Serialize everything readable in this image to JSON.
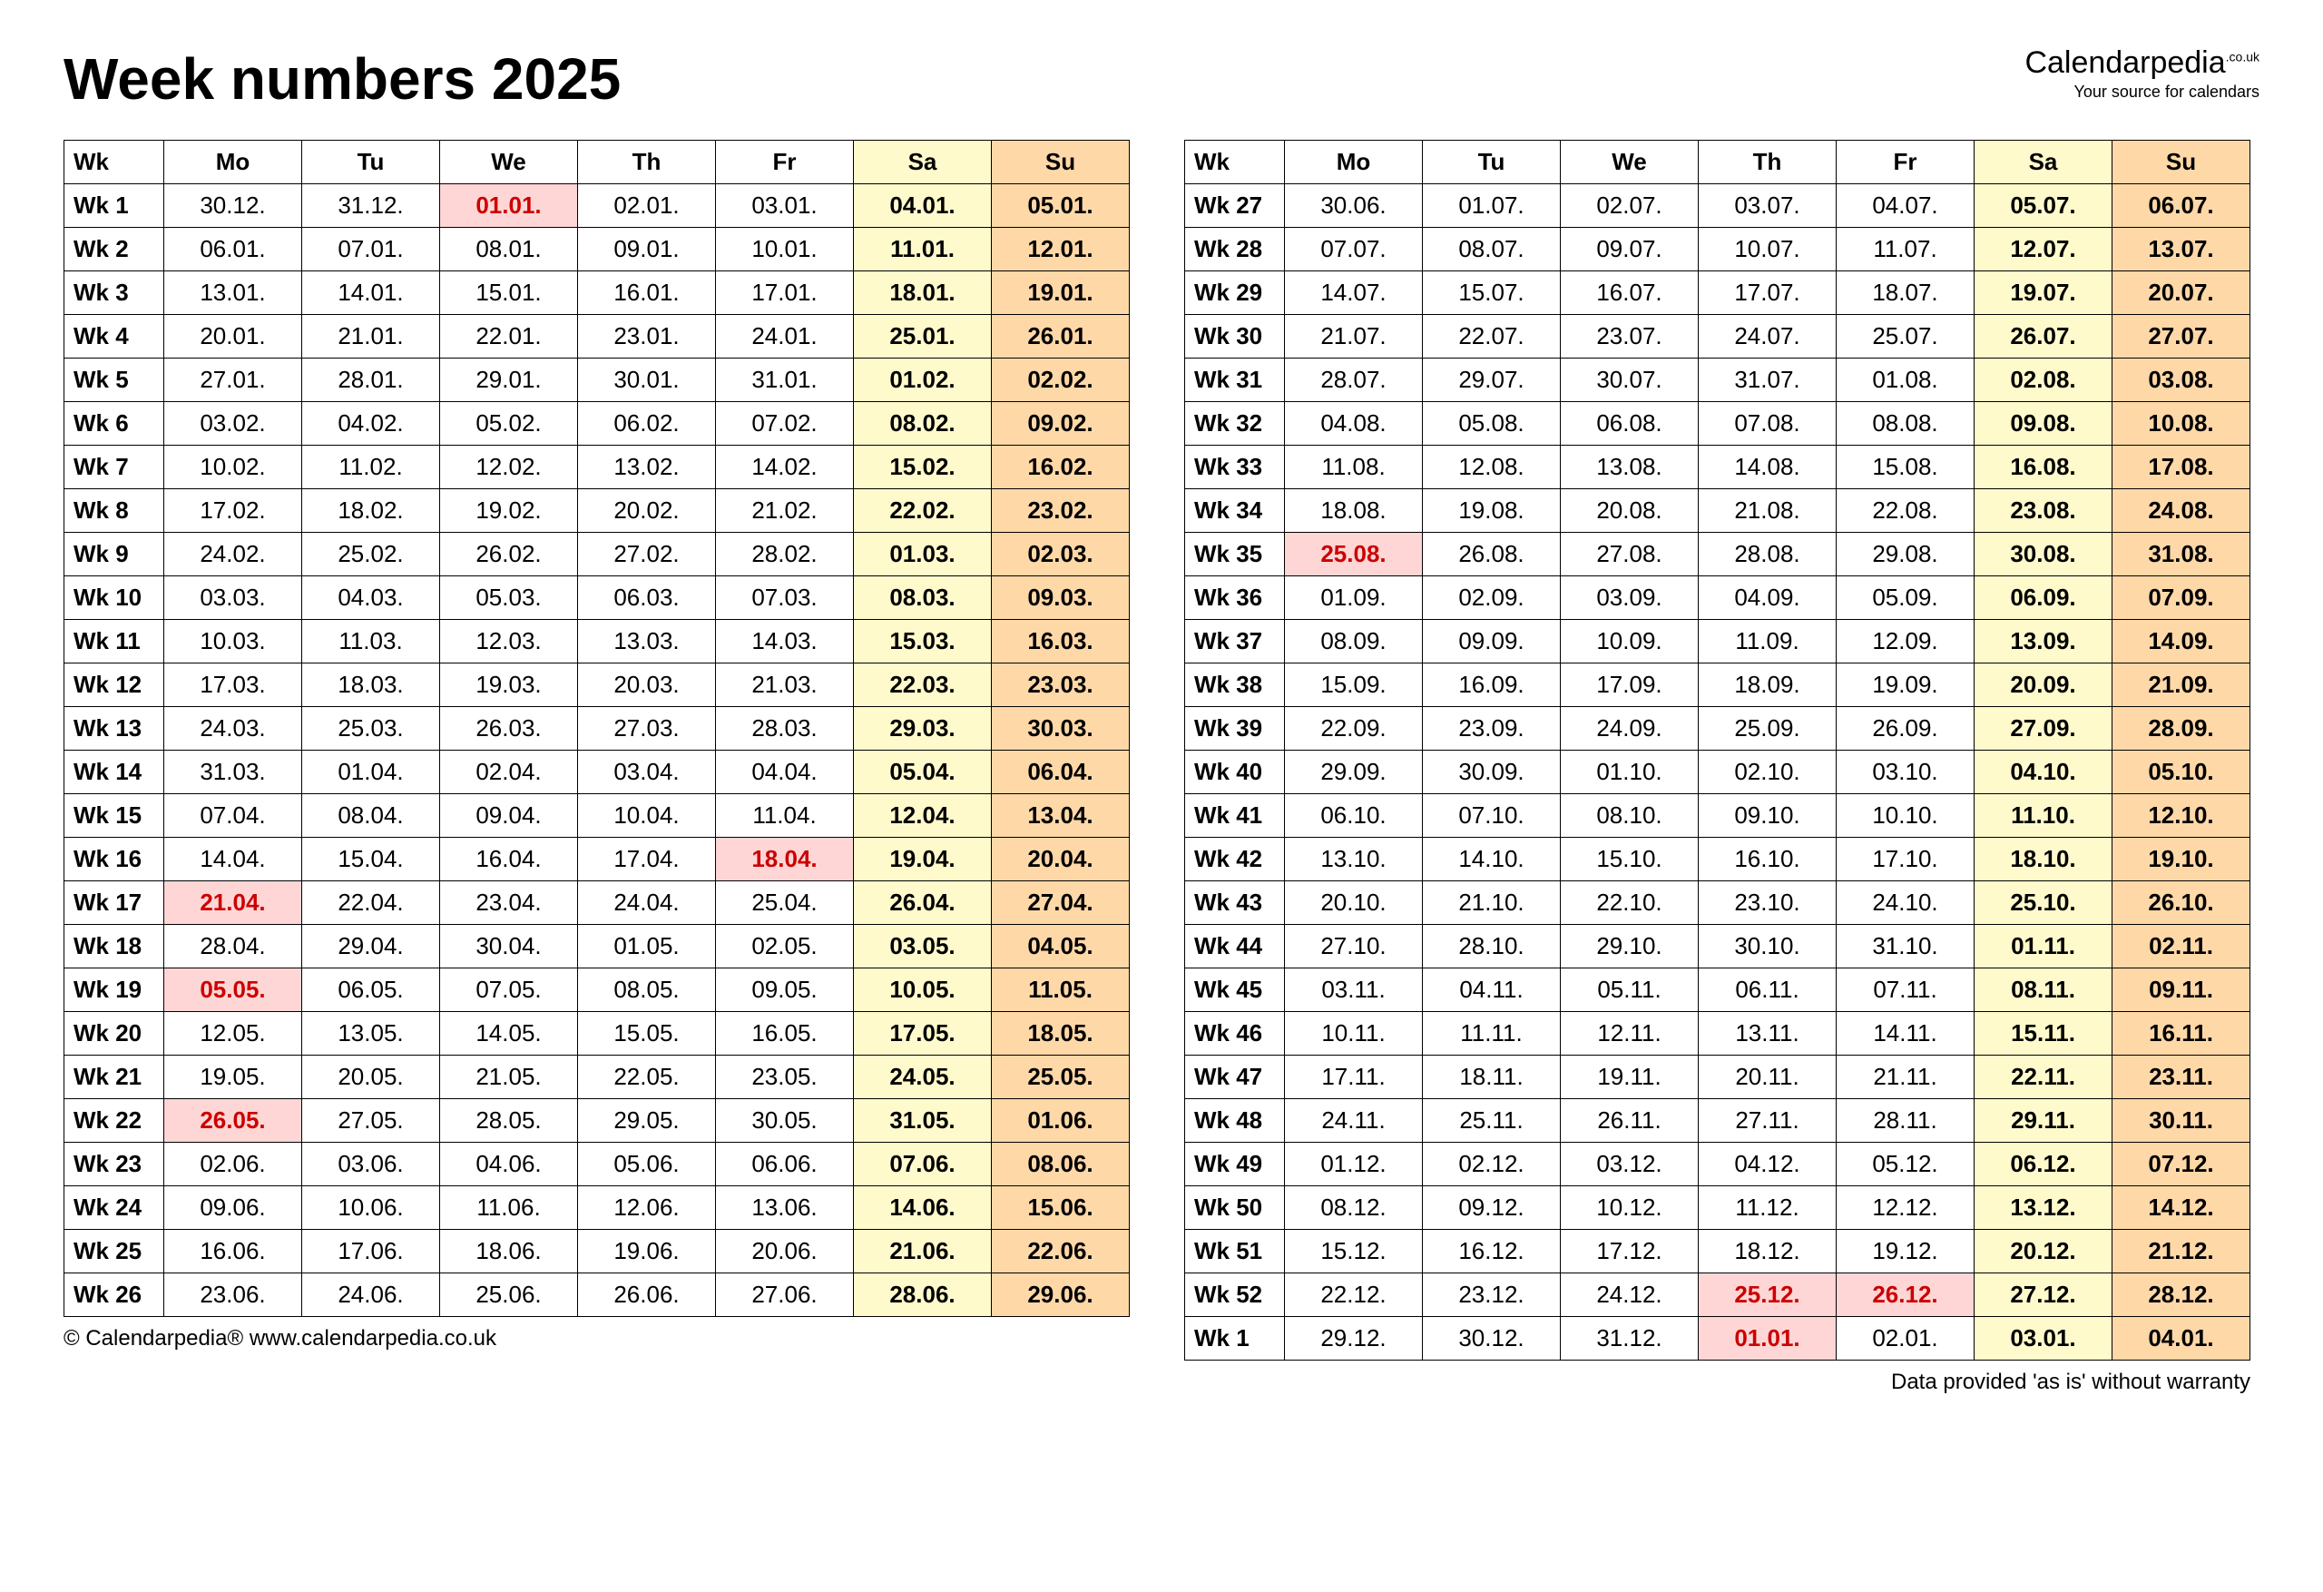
{
  "title": "Week numbers 2025",
  "logo": {
    "main": "Calendarpedia",
    "suffix": ".co.uk",
    "tagline": "Your source for calendars"
  },
  "footer_left": "© Calendarpedia®   www.calendarpedia.co.uk",
  "footer_right": "Data provided 'as is' without warranty",
  "colors": {
    "header_sat": "#fffacc",
    "header_sun": "#ffd8a8",
    "sat_bg": "#fffacc",
    "sun_bg": "#ffd8a8",
    "holiday_bg": "#ffd6d6",
    "holiday_text": "#cc0000",
    "border": "#000000",
    "text": "#000000"
  },
  "columns": [
    "Wk",
    "Mo",
    "Tu",
    "We",
    "Th",
    "Fr",
    "Sa",
    "Su"
  ],
  "left": [
    {
      "wk": "Wk 1",
      "d": [
        "30.12.",
        "31.12.",
        "01.01.",
        "02.01.",
        "03.01.",
        "04.01.",
        "05.01."
      ],
      "hol": [
        2
      ]
    },
    {
      "wk": "Wk 2",
      "d": [
        "06.01.",
        "07.01.",
        "08.01.",
        "09.01.",
        "10.01.",
        "11.01.",
        "12.01."
      ],
      "hol": []
    },
    {
      "wk": "Wk 3",
      "d": [
        "13.01.",
        "14.01.",
        "15.01.",
        "16.01.",
        "17.01.",
        "18.01.",
        "19.01."
      ],
      "hol": []
    },
    {
      "wk": "Wk 4",
      "d": [
        "20.01.",
        "21.01.",
        "22.01.",
        "23.01.",
        "24.01.",
        "25.01.",
        "26.01."
      ],
      "hol": []
    },
    {
      "wk": "Wk 5",
      "d": [
        "27.01.",
        "28.01.",
        "29.01.",
        "30.01.",
        "31.01.",
        "01.02.",
        "02.02."
      ],
      "hol": []
    },
    {
      "wk": "Wk 6",
      "d": [
        "03.02.",
        "04.02.",
        "05.02.",
        "06.02.",
        "07.02.",
        "08.02.",
        "09.02."
      ],
      "hol": []
    },
    {
      "wk": "Wk 7",
      "d": [
        "10.02.",
        "11.02.",
        "12.02.",
        "13.02.",
        "14.02.",
        "15.02.",
        "16.02."
      ],
      "hol": []
    },
    {
      "wk": "Wk 8",
      "d": [
        "17.02.",
        "18.02.",
        "19.02.",
        "20.02.",
        "21.02.",
        "22.02.",
        "23.02."
      ],
      "hol": []
    },
    {
      "wk": "Wk 9",
      "d": [
        "24.02.",
        "25.02.",
        "26.02.",
        "27.02.",
        "28.02.",
        "01.03.",
        "02.03."
      ],
      "hol": []
    },
    {
      "wk": "Wk 10",
      "d": [
        "03.03.",
        "04.03.",
        "05.03.",
        "06.03.",
        "07.03.",
        "08.03.",
        "09.03."
      ],
      "hol": []
    },
    {
      "wk": "Wk 11",
      "d": [
        "10.03.",
        "11.03.",
        "12.03.",
        "13.03.",
        "14.03.",
        "15.03.",
        "16.03."
      ],
      "hol": []
    },
    {
      "wk": "Wk 12",
      "d": [
        "17.03.",
        "18.03.",
        "19.03.",
        "20.03.",
        "21.03.",
        "22.03.",
        "23.03."
      ],
      "hol": []
    },
    {
      "wk": "Wk 13",
      "d": [
        "24.03.",
        "25.03.",
        "26.03.",
        "27.03.",
        "28.03.",
        "29.03.",
        "30.03."
      ],
      "hol": []
    },
    {
      "wk": "Wk 14",
      "d": [
        "31.03.",
        "01.04.",
        "02.04.",
        "03.04.",
        "04.04.",
        "05.04.",
        "06.04."
      ],
      "hol": []
    },
    {
      "wk": "Wk 15",
      "d": [
        "07.04.",
        "08.04.",
        "09.04.",
        "10.04.",
        "11.04.",
        "12.04.",
        "13.04."
      ],
      "hol": []
    },
    {
      "wk": "Wk 16",
      "d": [
        "14.04.",
        "15.04.",
        "16.04.",
        "17.04.",
        "18.04.",
        "19.04.",
        "20.04."
      ],
      "hol": [
        4
      ]
    },
    {
      "wk": "Wk 17",
      "d": [
        "21.04.",
        "22.04.",
        "23.04.",
        "24.04.",
        "25.04.",
        "26.04.",
        "27.04."
      ],
      "hol": [
        0
      ]
    },
    {
      "wk": "Wk 18",
      "d": [
        "28.04.",
        "29.04.",
        "30.04.",
        "01.05.",
        "02.05.",
        "03.05.",
        "04.05."
      ],
      "hol": []
    },
    {
      "wk": "Wk 19",
      "d": [
        "05.05.",
        "06.05.",
        "07.05.",
        "08.05.",
        "09.05.",
        "10.05.",
        "11.05."
      ],
      "hol": [
        0
      ]
    },
    {
      "wk": "Wk 20",
      "d": [
        "12.05.",
        "13.05.",
        "14.05.",
        "15.05.",
        "16.05.",
        "17.05.",
        "18.05."
      ],
      "hol": []
    },
    {
      "wk": "Wk 21",
      "d": [
        "19.05.",
        "20.05.",
        "21.05.",
        "22.05.",
        "23.05.",
        "24.05.",
        "25.05."
      ],
      "hol": []
    },
    {
      "wk": "Wk 22",
      "d": [
        "26.05.",
        "27.05.",
        "28.05.",
        "29.05.",
        "30.05.",
        "31.05.",
        "01.06."
      ],
      "hol": [
        0
      ]
    },
    {
      "wk": "Wk 23",
      "d": [
        "02.06.",
        "03.06.",
        "04.06.",
        "05.06.",
        "06.06.",
        "07.06.",
        "08.06."
      ],
      "hol": []
    },
    {
      "wk": "Wk 24",
      "d": [
        "09.06.",
        "10.06.",
        "11.06.",
        "12.06.",
        "13.06.",
        "14.06.",
        "15.06."
      ],
      "hol": []
    },
    {
      "wk": "Wk 25",
      "d": [
        "16.06.",
        "17.06.",
        "18.06.",
        "19.06.",
        "20.06.",
        "21.06.",
        "22.06."
      ],
      "hol": []
    },
    {
      "wk": "Wk 26",
      "d": [
        "23.06.",
        "24.06.",
        "25.06.",
        "26.06.",
        "27.06.",
        "28.06.",
        "29.06."
      ],
      "hol": []
    }
  ],
  "right": [
    {
      "wk": "Wk 27",
      "d": [
        "30.06.",
        "01.07.",
        "02.07.",
        "03.07.",
        "04.07.",
        "05.07.",
        "06.07."
      ],
      "hol": []
    },
    {
      "wk": "Wk 28",
      "d": [
        "07.07.",
        "08.07.",
        "09.07.",
        "10.07.",
        "11.07.",
        "12.07.",
        "13.07."
      ],
      "hol": []
    },
    {
      "wk": "Wk 29",
      "d": [
        "14.07.",
        "15.07.",
        "16.07.",
        "17.07.",
        "18.07.",
        "19.07.",
        "20.07."
      ],
      "hol": []
    },
    {
      "wk": "Wk 30",
      "d": [
        "21.07.",
        "22.07.",
        "23.07.",
        "24.07.",
        "25.07.",
        "26.07.",
        "27.07."
      ],
      "hol": []
    },
    {
      "wk": "Wk 31",
      "d": [
        "28.07.",
        "29.07.",
        "30.07.",
        "31.07.",
        "01.08.",
        "02.08.",
        "03.08."
      ],
      "hol": []
    },
    {
      "wk": "Wk 32",
      "d": [
        "04.08.",
        "05.08.",
        "06.08.",
        "07.08.",
        "08.08.",
        "09.08.",
        "10.08."
      ],
      "hol": []
    },
    {
      "wk": "Wk 33",
      "d": [
        "11.08.",
        "12.08.",
        "13.08.",
        "14.08.",
        "15.08.",
        "16.08.",
        "17.08."
      ],
      "hol": []
    },
    {
      "wk": "Wk 34",
      "d": [
        "18.08.",
        "19.08.",
        "20.08.",
        "21.08.",
        "22.08.",
        "23.08.",
        "24.08."
      ],
      "hol": []
    },
    {
      "wk": "Wk 35",
      "d": [
        "25.08.",
        "26.08.",
        "27.08.",
        "28.08.",
        "29.08.",
        "30.08.",
        "31.08."
      ],
      "hol": [
        0
      ]
    },
    {
      "wk": "Wk 36",
      "d": [
        "01.09.",
        "02.09.",
        "03.09.",
        "04.09.",
        "05.09.",
        "06.09.",
        "07.09."
      ],
      "hol": []
    },
    {
      "wk": "Wk 37",
      "d": [
        "08.09.",
        "09.09.",
        "10.09.",
        "11.09.",
        "12.09.",
        "13.09.",
        "14.09."
      ],
      "hol": []
    },
    {
      "wk": "Wk 38",
      "d": [
        "15.09.",
        "16.09.",
        "17.09.",
        "18.09.",
        "19.09.",
        "20.09.",
        "21.09."
      ],
      "hol": []
    },
    {
      "wk": "Wk 39",
      "d": [
        "22.09.",
        "23.09.",
        "24.09.",
        "25.09.",
        "26.09.",
        "27.09.",
        "28.09."
      ],
      "hol": []
    },
    {
      "wk": "Wk 40",
      "d": [
        "29.09.",
        "30.09.",
        "01.10.",
        "02.10.",
        "03.10.",
        "04.10.",
        "05.10."
      ],
      "hol": []
    },
    {
      "wk": "Wk 41",
      "d": [
        "06.10.",
        "07.10.",
        "08.10.",
        "09.10.",
        "10.10.",
        "11.10.",
        "12.10."
      ],
      "hol": []
    },
    {
      "wk": "Wk 42",
      "d": [
        "13.10.",
        "14.10.",
        "15.10.",
        "16.10.",
        "17.10.",
        "18.10.",
        "19.10."
      ],
      "hol": []
    },
    {
      "wk": "Wk 43",
      "d": [
        "20.10.",
        "21.10.",
        "22.10.",
        "23.10.",
        "24.10.",
        "25.10.",
        "26.10."
      ],
      "hol": []
    },
    {
      "wk": "Wk 44",
      "d": [
        "27.10.",
        "28.10.",
        "29.10.",
        "30.10.",
        "31.10.",
        "01.11.",
        "02.11."
      ],
      "hol": []
    },
    {
      "wk": "Wk 45",
      "d": [
        "03.11.",
        "04.11.",
        "05.11.",
        "06.11.",
        "07.11.",
        "08.11.",
        "09.11."
      ],
      "hol": []
    },
    {
      "wk": "Wk 46",
      "d": [
        "10.11.",
        "11.11.",
        "12.11.",
        "13.11.",
        "14.11.",
        "15.11.",
        "16.11."
      ],
      "hol": []
    },
    {
      "wk": "Wk 47",
      "d": [
        "17.11.",
        "18.11.",
        "19.11.",
        "20.11.",
        "21.11.",
        "22.11.",
        "23.11."
      ],
      "hol": []
    },
    {
      "wk": "Wk 48",
      "d": [
        "24.11.",
        "25.11.",
        "26.11.",
        "27.11.",
        "28.11.",
        "29.11.",
        "30.11."
      ],
      "hol": []
    },
    {
      "wk": "Wk 49",
      "d": [
        "01.12.",
        "02.12.",
        "03.12.",
        "04.12.",
        "05.12.",
        "06.12.",
        "07.12."
      ],
      "hol": []
    },
    {
      "wk": "Wk 50",
      "d": [
        "08.12.",
        "09.12.",
        "10.12.",
        "11.12.",
        "12.12.",
        "13.12.",
        "14.12."
      ],
      "hol": []
    },
    {
      "wk": "Wk 51",
      "d": [
        "15.12.",
        "16.12.",
        "17.12.",
        "18.12.",
        "19.12.",
        "20.12.",
        "21.12."
      ],
      "hol": []
    },
    {
      "wk": "Wk 52",
      "d": [
        "22.12.",
        "23.12.",
        "24.12.",
        "25.12.",
        "26.12.",
        "27.12.",
        "28.12."
      ],
      "hol": [
        3,
        4
      ]
    },
    {
      "wk": "Wk 1",
      "d": [
        "29.12.",
        "30.12.",
        "31.12.",
        "01.01.",
        "02.01.",
        "03.01.",
        "04.01."
      ],
      "hol": [
        3
      ]
    }
  ]
}
